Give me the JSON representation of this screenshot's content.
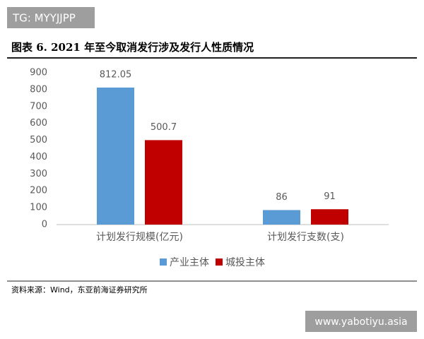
{
  "header": {
    "tag": "TG: MYYJJPP",
    "title": "图表 6.  2021 年至今取消发行涉及发行人性质情况"
  },
  "chart_data": {
    "type": "bar",
    "categories": [
      "计划发行规模(亿元)",
      "计划发行支数(支)"
    ],
    "series": [
      {
        "name": "产业主体",
        "color": "#5b9bd5",
        "values": [
          812.05,
          86
        ]
      },
      {
        "name": "城投主体",
        "color": "#c00000",
        "values": [
          500.7,
          91
        ]
      }
    ],
    "ylim": [
      0,
      900
    ],
    "yticks": [
      0,
      100,
      200,
      300,
      400,
      500,
      600,
      700,
      800,
      900
    ],
    "grid": false,
    "legend": "bottom"
  },
  "footer": {
    "source": "资料来源：Wind，东亚前海证券研究所"
  },
  "watermark": "www.yabotiyu.asia"
}
